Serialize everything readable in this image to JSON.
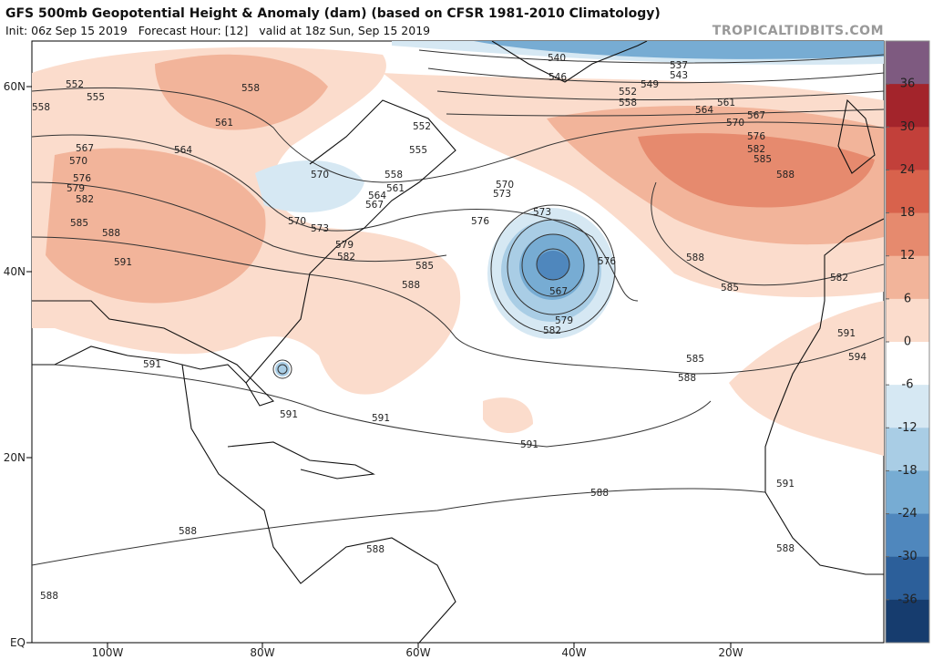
{
  "header": {
    "title": "GFS 500mb Geopotential Height & Anomaly (dam) (based on CFSR 1981-2010 Climatology)",
    "subtitle": "Init: 06z Sep 15 2019   Forecast Hour: [12]   valid at 18z Sun, Sep 15 2019",
    "site": "TROPICALTIDBITS.COM"
  },
  "map": {
    "lat_labels": [
      "60N",
      "40N",
      "20N",
      "EQ"
    ],
    "lon_labels": [
      "100W",
      "80W",
      "60W",
      "40W",
      "20W"
    ],
    "contour_labels": [
      "540",
      "537",
      "543",
      "546",
      "549",
      "552",
      "558",
      "561",
      "564",
      "567",
      "570",
      "576",
      "582",
      "585",
      "588",
      "552",
      "555",
      "558",
      "558",
      "561",
      "552",
      "555",
      "564",
      "567",
      "570",
      "576",
      "579",
      "582",
      "585",
      "588",
      "591",
      "570",
      "558",
      "561",
      "564",
      "567",
      "570",
      "573",
      "579",
      "582",
      "573",
      "570",
      "576",
      "573",
      "585",
      "588",
      "576",
      "567",
      "579",
      "582",
      "588",
      "585",
      "585",
      "588",
      "591",
      "591",
      "591",
      "591",
      "588",
      "588",
      "588",
      "588",
      "588",
      "591",
      "591",
      "594",
      "582"
    ]
  },
  "colorbar": {
    "ticks": [
      36,
      30,
      24,
      18,
      12,
      6,
      0,
      -6,
      -12,
      -18,
      -24,
      -30,
      -36
    ],
    "colors": [
      "#7e5a80",
      "#a3242b",
      "#c2403a",
      "#d8624c",
      "#e68a6e",
      "#f2b49a",
      "#fbdccc",
      "#ffffff",
      "#d6e8f3",
      "#a9cde5",
      "#77acd3",
      "#4f87bd",
      "#2c5f9a",
      "#163c6e"
    ]
  }
}
